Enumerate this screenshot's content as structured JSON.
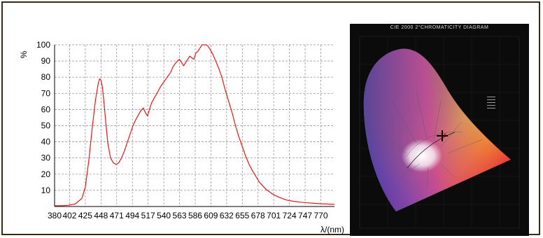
{
  "chart_data": [
    {
      "type": "line",
      "title": "",
      "xlabel": "λ/(nm)",
      "ylabel": "%",
      "x_ticks": [
        380,
        402,
        425,
        448,
        471,
        494,
        517,
        540,
        563,
        586,
        609,
        632,
        655,
        678,
        701,
        724,
        747,
        770
      ],
      "y_ticks": [
        10,
        20,
        30,
        40,
        50,
        60,
        70,
        80,
        90,
        100
      ],
      "xlim": [
        380,
        790
      ],
      "ylim": [
        0,
        100
      ],
      "grid": true,
      "series": [
        {
          "color": "#e8171b",
          "x": [
            380,
            390,
            400,
            410,
            420,
            425,
            430,
            435,
            440,
            444,
            446,
            448,
            450,
            452,
            455,
            458,
            462,
            466,
            470,
            474,
            478,
            482,
            486,
            490,
            494,
            498,
            502,
            506,
            510,
            513,
            516,
            519,
            522,
            526,
            530,
            535,
            540,
            545,
            550,
            553,
            556,
            560,
            563,
            566,
            569,
            572,
            575,
            578,
            581,
            584,
            587,
            590,
            593,
            596,
            599,
            602,
            605,
            608,
            612,
            616,
            620,
            625,
            630,
            635,
            640,
            645,
            650,
            655,
            660,
            665,
            670,
            680,
            690,
            700,
            710,
            720,
            730,
            740,
            750,
            760,
            770,
            780,
            790
          ],
          "y": [
            0.5,
            0.5,
            0.8,
            1.5,
            5,
            12,
            28,
            48,
            66,
            76,
            79,
            78,
            74,
            66,
            52,
            39,
            30,
            27,
            26,
            27,
            30,
            34,
            39,
            44,
            49,
            53,
            56,
            59,
            61,
            58,
            56,
            60,
            64,
            67,
            70,
            74,
            77,
            80,
            83,
            86,
            88,
            90,
            91,
            89,
            87,
            89,
            91,
            93,
            92,
            91,
            95,
            96,
            98,
            100,
            100,
            100,
            99,
            97,
            94,
            90,
            86,
            80,
            72,
            65,
            58,
            50,
            43,
            37,
            31,
            26,
            22,
            15,
            10.5,
            7.5,
            5.5,
            4,
            3.2,
            2.7,
            2.3,
            2,
            1.7,
            1.5,
            1.3
          ]
        }
      ]
    },
    {
      "type": "other",
      "title": "CIE 2000 2°CHROMATICITY DIAGRAM"
    }
  ]
}
